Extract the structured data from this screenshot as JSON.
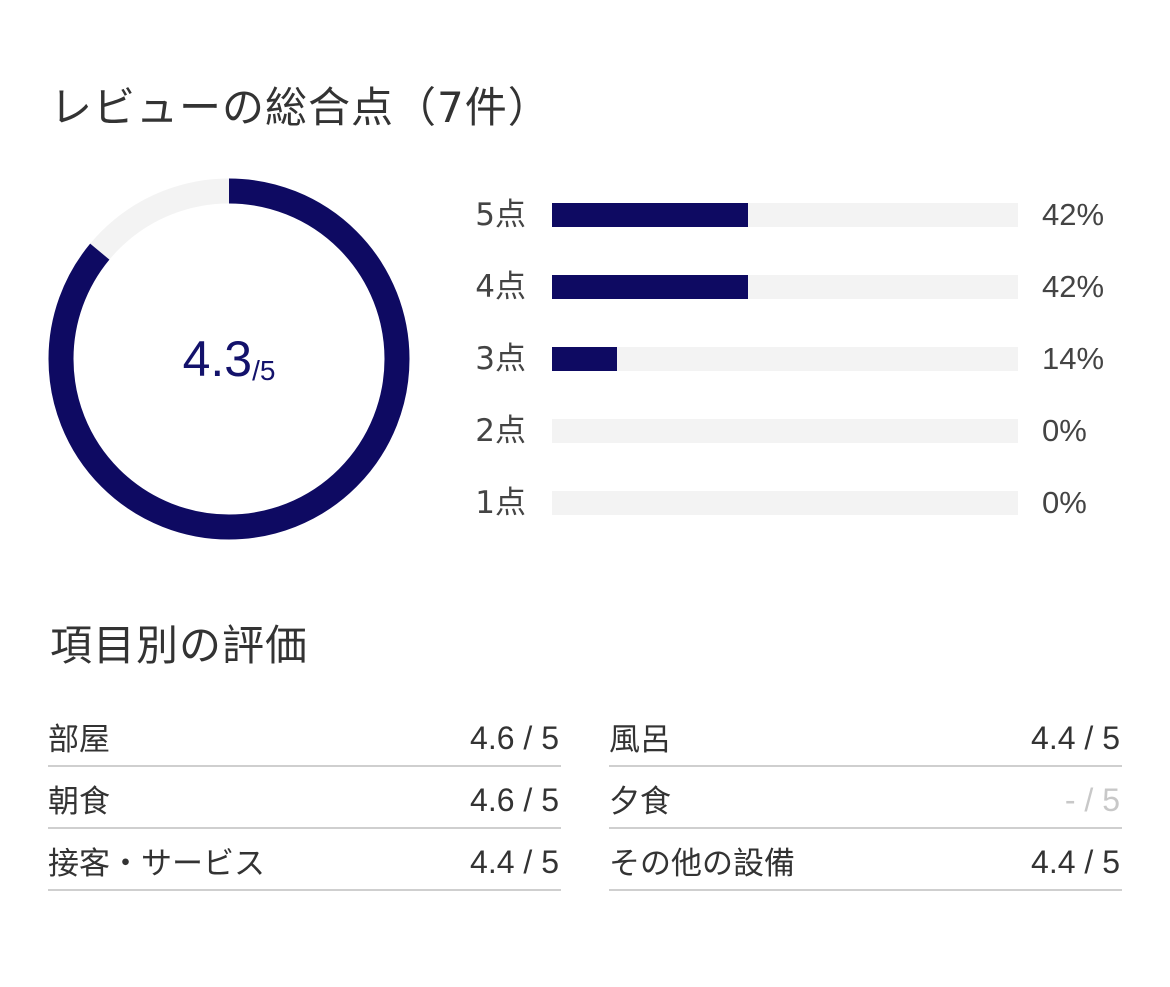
{
  "overall": {
    "title": "レビューの総合点（7件）",
    "score": "4.3",
    "score_max": "/5",
    "score_fraction": 0.86,
    "colors": {
      "accent": "#0e0a62",
      "track": "#f3f3f3",
      "score_text": "#13126b"
    }
  },
  "distribution": [
    {
      "label": "5点",
      "percent_text": "42%",
      "percent": 42
    },
    {
      "label": "4点",
      "percent_text": "42%",
      "percent": 42
    },
    {
      "label": "3点",
      "percent_text": "14%",
      "percent": 14
    },
    {
      "label": "2点",
      "percent_text": "0%",
      "percent": 0
    },
    {
      "label": "1点",
      "percent_text": "0%",
      "percent": 0
    }
  ],
  "categories": {
    "title": "項目別の評価",
    "items": [
      {
        "name": "部屋",
        "value": "4.6 / 5"
      },
      {
        "name": "風呂",
        "value": "4.4 / 5"
      },
      {
        "name": "朝食",
        "value": "4.6 / 5"
      },
      {
        "name": "夕食",
        "value": "- / 5"
      },
      {
        "name": "接客・サービス",
        "value": "4.4 / 5"
      },
      {
        "name": "その他の設備",
        "value": "4.4 / 5"
      }
    ]
  }
}
